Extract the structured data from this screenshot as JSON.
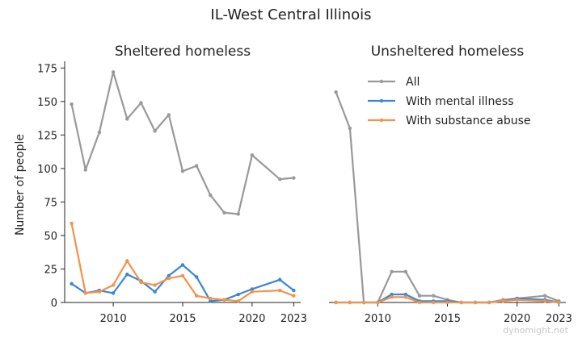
{
  "suptitle": "IL-West Central Illinois",
  "ylabel": "Number of people",
  "watermark": "dynomight.net",
  "colors": {
    "All": "#999999",
    "With mental illness": "#3a86d9",
    "With substance abuse": "#f4924a"
  },
  "legend": [
    "All",
    "With mental illness",
    "With substance abuse"
  ],
  "chart_data": [
    {
      "type": "line",
      "title": "Sheltered homeless",
      "xlim": [
        2006.5,
        2023.5
      ],
      "ylim": [
        0,
        180
      ],
      "xticks": [
        "2010",
        "2015",
        "2020",
        "2023"
      ],
      "yticks": [
        "0",
        "25",
        "50",
        "75",
        "100",
        "125",
        "150",
        "175"
      ],
      "x": [
        2007,
        2008,
        2009,
        2010,
        2011,
        2012,
        2013,
        2014,
        2015,
        2016,
        2017,
        2018,
        2019,
        2020,
        2022,
        2023
      ],
      "series": [
        {
          "name": "All",
          "values": [
            148,
            99,
            127,
            172,
            137,
            149,
            128,
            140,
            98,
            102,
            80,
            67,
            66,
            110,
            92,
            93
          ]
        },
        {
          "name": "With mental illness",
          "values": [
            14,
            7,
            9,
            7,
            21,
            16,
            8,
            20,
            28,
            19,
            1,
            2,
            6,
            10,
            17,
            9
          ]
        },
        {
          "name": "With substance abuse",
          "values": [
            59,
            7,
            8,
            13,
            31,
            15,
            13,
            18,
            20,
            5,
            3,
            2,
            1,
            8,
            9,
            5
          ]
        }
      ]
    },
    {
      "type": "line",
      "title": "Unsheltered homeless",
      "xlim": [
        2006.5,
        2023.5
      ],
      "ylim": [
        0,
        180
      ],
      "xticks": [
        "2010",
        "2015",
        "2020",
        "2023"
      ],
      "yticks": [],
      "x": [
        2007,
        2008,
        2009,
        2010,
        2011,
        2012,
        2013,
        2014,
        2015,
        2016,
        2017,
        2018,
        2019,
        2020,
        2022,
        2023
      ],
      "series": [
        {
          "name": "All",
          "values": [
            157,
            130,
            0,
            0,
            23,
            23,
            5,
            5,
            2,
            0,
            0,
            0,
            2,
            3,
            5,
            1
          ]
        },
        {
          "name": "With mental illness",
          "values": [
            0,
            0,
            0,
            0,
            6,
            6,
            1,
            1,
            1,
            0,
            0,
            0,
            1,
            3,
            2,
            0
          ]
        },
        {
          "name": "With substance abuse",
          "values": [
            0,
            0,
            0,
            0,
            4,
            4,
            0,
            0,
            0,
            0,
            0,
            0,
            1,
            2,
            1,
            0
          ]
        }
      ]
    }
  ]
}
